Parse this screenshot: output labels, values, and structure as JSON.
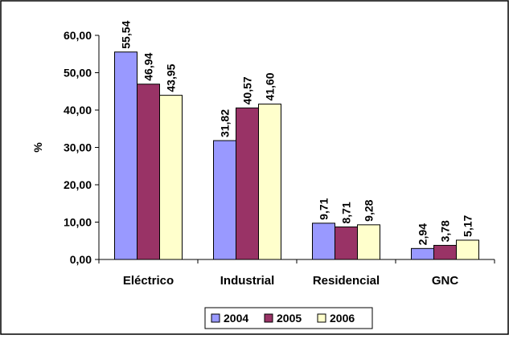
{
  "chart_data": {
    "type": "bar",
    "title": "",
    "xlabel": "",
    "ylabel": "%",
    "ylim": [
      0,
      60
    ],
    "yticks": [
      "0,00",
      "10,00",
      "20,00",
      "30,00",
      "40,00",
      "50,00",
      "60,00"
    ],
    "categories": [
      "Eléctrico",
      "Industrial",
      "Residencial",
      "GNC"
    ],
    "series": [
      {
        "name": "2004",
        "color": "#9999ff",
        "values": [
          55.54,
          31.82,
          9.71,
          2.94
        ],
        "labels": [
          "55,54",
          "31,82",
          "9,71",
          "2,94"
        ]
      },
      {
        "name": "2005",
        "color": "#993366",
        "values": [
          46.94,
          40.57,
          8.71,
          3.78
        ],
        "labels": [
          "46,94",
          "40,57",
          "8,71",
          "3,78"
        ]
      },
      {
        "name": "2006",
        "color": "#ffffcc",
        "values": [
          43.95,
          41.6,
          9.28,
          5.17
        ],
        "labels": [
          "43,95",
          "41,60",
          "9,28",
          "5,17"
        ]
      }
    ],
    "grid": false,
    "legend_position": "bottom"
  }
}
